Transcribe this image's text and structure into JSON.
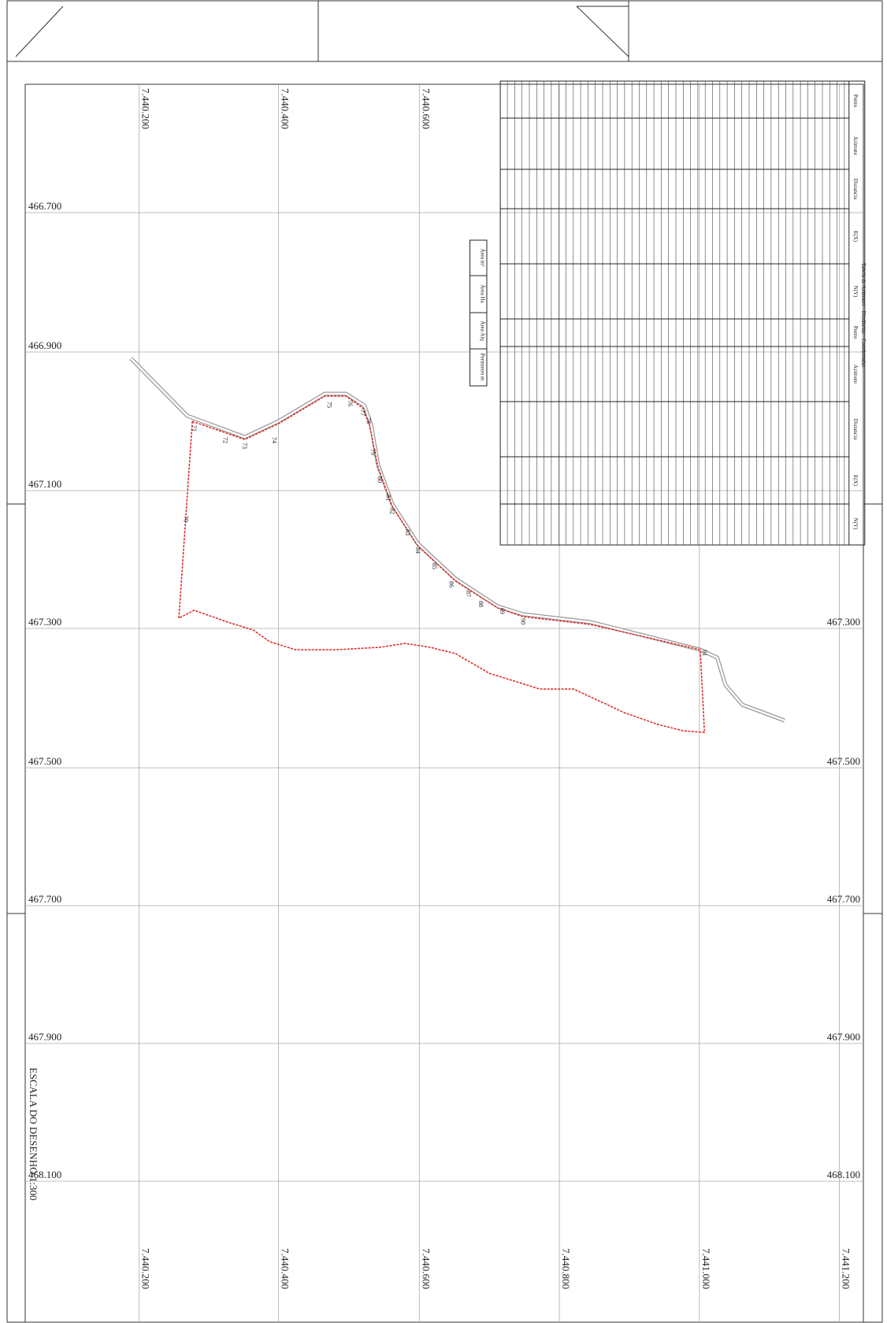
{
  "x_labels_top": [
    "7.440.200",
    "7.440.400",
    "7.440.600"
  ],
  "x_labels_bottom": [
    "7.440.200",
    "7.440.400",
    "7.440.600",
    "7.440.800",
    "7.441.000",
    "7.441.200"
  ],
  "y_labels_left": [
    "466.700",
    "466.900",
    "467.100",
    "467.300",
    "467.500",
    "467.700",
    "467.900",
    "468.100"
  ],
  "y_labels_right": [
    "467.300",
    "467.500",
    "467.700",
    "467.900",
    "468.100"
  ],
  "table": {
    "title": "Tabela de Azimutes - Distâncias - Coordenadas",
    "headers": [
      "Ponto",
      "Azimute",
      "Distancia",
      "E(X)",
      "N(Y)"
    ]
  },
  "area_box": {
    "headers": [
      "Área m²",
      "Área Ha",
      "Área Alq",
      "Perímetro m"
    ]
  },
  "scale_note": "ESCALA DO DESENHO 1:300",
  "boundary_points": [
    "70",
    "71",
    "72",
    "73",
    "74",
    "75",
    "76",
    "77",
    "78",
    "79",
    "80",
    "81",
    "82",
    "83",
    "84",
    "85",
    "86",
    "87",
    "88",
    "89",
    "90",
    "91"
  ]
}
